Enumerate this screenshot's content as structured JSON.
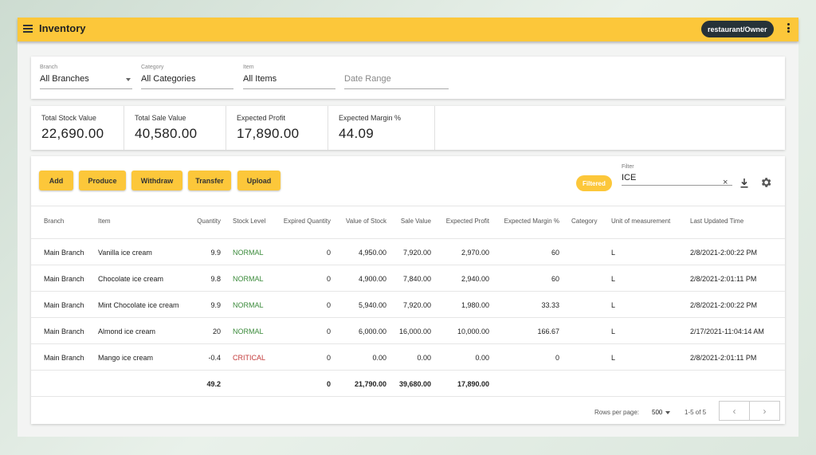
{
  "app": {
    "title": "Inventory",
    "user": "restaurant/Owner"
  },
  "filters": {
    "branch": {
      "label": "Branch",
      "value": "All Branches"
    },
    "category": {
      "label": "Category",
      "value": "All Categories"
    },
    "item": {
      "label": "Item",
      "value": "All Items"
    },
    "date_range": {
      "placeholder": "Date Range"
    }
  },
  "stats": [
    {
      "label": "Total Stock Value",
      "value": "22,690.00"
    },
    {
      "label": "Total Sale Value",
      "value": "40,580.00"
    },
    {
      "label": "Expected Profit",
      "value": "17,890.00"
    },
    {
      "label": "Expected Margin %",
      "value": "44.09"
    }
  ],
  "toolbar": {
    "buttons": [
      "Add",
      "Produce",
      "Withdraw",
      "Transfer",
      "Upload"
    ],
    "filtered_chip": "Filtered",
    "filter_label": "Filter",
    "filter_value": "ICE",
    "clear_icon": "×",
    "download_icon": "download-icon",
    "settings_icon": "gear-icon"
  },
  "table": {
    "columns": [
      "Branch",
      "Item",
      "Quantity",
      "Stock Level",
      "Expired Quantity",
      "Value of Stock",
      "Sale Value",
      "Expected Profit",
      "Expected Margin %",
      "Category",
      "Unit of measurement",
      "Last Updated Time"
    ],
    "rows": [
      [
        "Main Branch",
        "Vanilla ice cream",
        "9.9",
        "NORMAL",
        "0",
        "4,950.00",
        "7,920.00",
        "2,970.00",
        "60",
        "",
        "L",
        "2/8/2021-2:00:22 PM"
      ],
      [
        "Main Branch",
        "Chocolate ice cream",
        "9.8",
        "NORMAL",
        "0",
        "4,900.00",
        "7,840.00",
        "2,940.00",
        "60",
        "",
        "L",
        "2/8/2021-2:01:11 PM"
      ],
      [
        "Main Branch",
        "Mint Chocolate ice cream",
        "9.9",
        "NORMAL",
        "0",
        "5,940.00",
        "7,920.00",
        "1,980.00",
        "33.33",
        "",
        "L",
        "2/8/2021-2:00:22 PM"
      ],
      [
        "Main Branch",
        "Almond ice cream",
        "20",
        "NORMAL",
        "0",
        "6,000.00",
        "16,000.00",
        "10,000.00",
        "166.67",
        "",
        "L",
        "2/17/2021-11:04:14 AM"
      ],
      [
        "Main Branch",
        "Mango ice cream",
        "-0.4",
        "CRITICAL",
        "0",
        "0.00",
        "0.00",
        "0.00",
        "0",
        "",
        "L",
        "2/8/2021-2:01:11 PM"
      ]
    ],
    "totals": {
      "quantity": "49.2",
      "expired": "0",
      "value_of_stock": "21,790.00",
      "sale_value": "39,680.00",
      "expected_profit": "17,890.00"
    }
  },
  "pagination": {
    "rows_per_page_label": "Rows per page:",
    "rows_per_page": "500",
    "range": "1-5 of 5",
    "prev": "‹",
    "next": "›"
  },
  "colors": {
    "accent": "#fcc73a",
    "chip_dark": "#263238",
    "normal": "#3a8a3a",
    "critical": "#c33b3b"
  }
}
